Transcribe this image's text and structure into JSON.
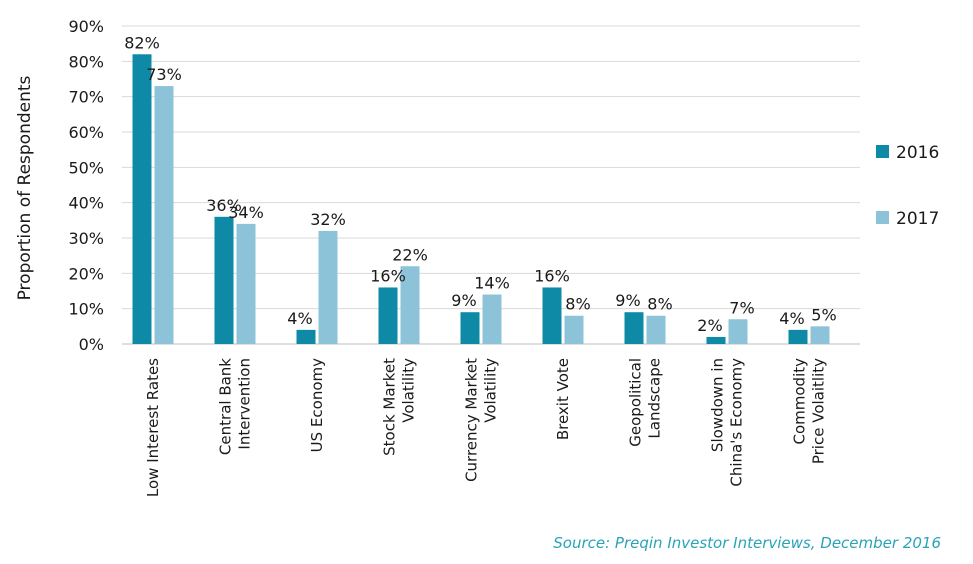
{
  "chart_data": {
    "type": "bar",
    "ylabel": "Proportion of Respondents",
    "ylim": [
      0,
      90
    ],
    "yticks": [
      "0%",
      "10%",
      "20%",
      "30%",
      "40%",
      "50%",
      "60%",
      "70%",
      "80%",
      "90%"
    ],
    "grid": true,
    "legend_position": "right",
    "categories": [
      [
        "Low Interest Rates"
      ],
      [
        "Central Bank",
        "Intervention"
      ],
      [
        "US Economy"
      ],
      [
        "Stock Market",
        "Volatility"
      ],
      [
        "Currency Market",
        "Volatility"
      ],
      [
        "Brexit Vote"
      ],
      [
        "Geopolitical",
        "Landscape"
      ],
      [
        "Slowdown in",
        "China's Economy"
      ],
      [
        "Commodity",
        "Price Volaitlity"
      ]
    ],
    "series": [
      {
        "name": "2016",
        "color": "#0f8aa6",
        "values": [
          82,
          36,
          4,
          16,
          9,
          16,
          9,
          2,
          4
        ],
        "labels": [
          "82%",
          "36%",
          "4%",
          "16%",
          "9%",
          "16%",
          "9%",
          "2%",
          "4%"
        ]
      },
      {
        "name": "2017",
        "color": "#8cc3d8",
        "values": [
          73,
          34,
          32,
          22,
          14,
          8,
          8,
          7,
          5
        ],
        "labels": [
          "73%",
          "34%",
          "32%",
          "22%",
          "14%",
          "8%",
          "8%",
          "7%",
          "5%"
        ]
      }
    ]
  },
  "source": "Source: Preqin Investor Interviews, December 2016"
}
